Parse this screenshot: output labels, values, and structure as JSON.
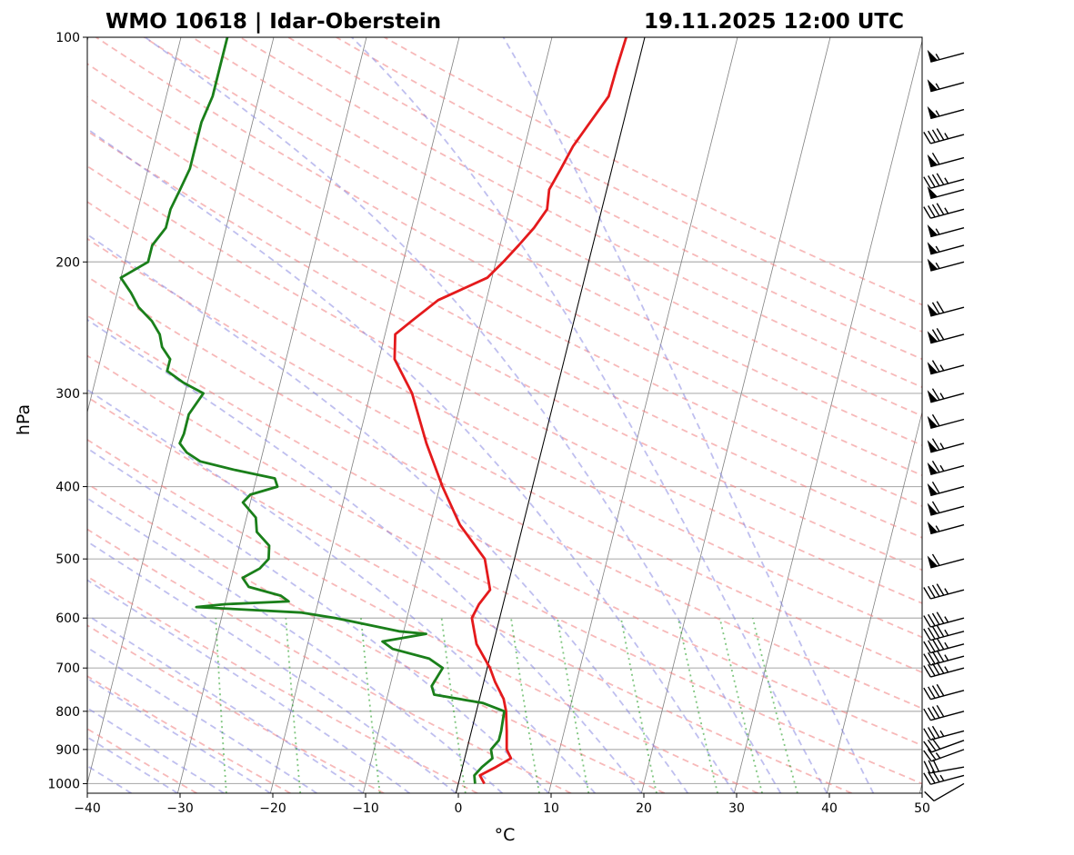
{
  "chart_data": {
    "type": "skew-t",
    "title_left": "WMO 10618 | Idar-Oberstein",
    "title_right": "19.11.2025 12:00 UTC",
    "xlabel": "°C",
    "ylabel": "hPa",
    "xlim": [
      -40,
      50
    ],
    "ylim": [
      1030,
      100
    ],
    "x_ticks": [
      -40,
      -30,
      -20,
      -10,
      0,
      10,
      20,
      30,
      40,
      50
    ],
    "x_tick_labels": [
      "−40",
      "−30",
      "−20",
      "−10",
      "0",
      "10",
      "20",
      "30",
      "40",
      "50"
    ],
    "y_ticks": [
      1000,
      900,
      800,
      700,
      600,
      500,
      400,
      300,
      200,
      100
    ],
    "y_tick_labels": [
      "1000",
      "900",
      "800",
      "700",
      "600",
      "500",
      "400",
      "300",
      "200",
      "100"
    ],
    "reference_lines": {
      "isotherms_c": [
        -160,
        -150,
        -140,
        -130,
        -120,
        -110,
        -100,
        -90,
        -80,
        -70,
        -60,
        -50,
        -40,
        -30,
        -20,
        -10,
        0,
        10,
        20,
        30,
        40,
        50
      ],
      "dry_adiabats_c": [
        -30,
        -20,
        -10,
        0,
        10,
        20,
        30,
        40,
        50,
        60,
        70,
        80,
        90,
        100,
        110,
        120,
        130,
        140,
        150,
        160,
        170,
        180,
        190,
        200
      ],
      "moist_adiabats_c": [
        -35,
        -30,
        -25,
        -20,
        -15,
        -10,
        -5,
        0,
        5,
        10,
        15,
        20,
        25,
        30,
        35,
        40,
        45
      ],
      "mixing_ratio_lines_gkg": [
        0.5,
        1,
        2,
        4,
        7,
        10,
        16,
        24,
        32,
        40
      ],
      "highlighted_isotherm_c": 0
    },
    "series": [
      {
        "name": "Temperature",
        "color": "#e41a1c",
        "points": [
          [
            1000,
            2.8
          ],
          [
            975,
            2.1
          ],
          [
            950,
            3.6
          ],
          [
            925,
            5.0
          ],
          [
            900,
            4.3
          ],
          [
            850,
            3.8
          ],
          [
            800,
            3.2
          ],
          [
            770,
            2.6
          ],
          [
            730,
            1.2
          ],
          [
            700,
            0.3
          ],
          [
            650,
            -1.8
          ],
          [
            600,
            -3.0
          ],
          [
            575,
            -2.6
          ],
          [
            550,
            -1.8
          ],
          [
            500,
            -3.2
          ],
          [
            450,
            -6.8
          ],
          [
            400,
            -9.7
          ],
          [
            350,
            -12.6
          ],
          [
            300,
            -15.5
          ],
          [
            270,
            -18.3
          ],
          [
            250,
            -18.9
          ],
          [
            240,
            -17.5
          ],
          [
            225,
            -15.2
          ],
          [
            210,
            -10.5
          ],
          [
            200,
            -9.2
          ],
          [
            190,
            -8.0
          ],
          [
            180,
            -6.8
          ],
          [
            170,
            -5.9
          ],
          [
            160,
            -6.2
          ],
          [
            150,
            -5.5
          ],
          [
            140,
            -4.8
          ],
          [
            130,
            -3.6
          ],
          [
            120,
            -2.3
          ],
          [
            110,
            -2.2
          ],
          [
            100,
            -2.0
          ]
        ]
      },
      {
        "name": "Dewpoint",
        "color": "#1a7f1a",
        "points": [
          [
            1000,
            1.8
          ],
          [
            975,
            1.5
          ],
          [
            950,
            2.1
          ],
          [
            925,
            3.0
          ],
          [
            900,
            2.6
          ],
          [
            875,
            3.2
          ],
          [
            850,
            3.2
          ],
          [
            800,
            3.0
          ],
          [
            780,
            0.5
          ],
          [
            760,
            -5.0
          ],
          [
            740,
            -5.5
          ],
          [
            700,
            -4.8
          ],
          [
            680,
            -6.5
          ],
          [
            660,
            -10.7
          ],
          [
            645,
            -12.0
          ],
          [
            630,
            -7.5
          ],
          [
            625,
            -10.5
          ],
          [
            600,
            -17.7
          ],
          [
            590,
            -21.5
          ],
          [
            580,
            -33.0
          ],
          [
            575,
            -30.0
          ],
          [
            570,
            -23.2
          ],
          [
            560,
            -24.2
          ],
          [
            545,
            -27.9
          ],
          [
            530,
            -28.8
          ],
          [
            515,
            -27.2
          ],
          [
            500,
            -26.5
          ],
          [
            480,
            -26.8
          ],
          [
            460,
            -28.5
          ],
          [
            440,
            -29.0
          ],
          [
            420,
            -30.8
          ],
          [
            410,
            -30.2
          ],
          [
            400,
            -27.5
          ],
          [
            390,
            -28.0
          ],
          [
            380,
            -32.5
          ],
          [
            370,
            -36.5
          ],
          [
            360,
            -38.2
          ],
          [
            350,
            -39.2
          ],
          [
            340,
            -39.0
          ],
          [
            320,
            -39.0
          ],
          [
            300,
            -38.0
          ],
          [
            290,
            -40.5
          ],
          [
            280,
            -42.5
          ],
          [
            270,
            -42.5
          ],
          [
            260,
            -43.7
          ],
          [
            250,
            -44.3
          ],
          [
            240,
            -45.5
          ],
          [
            230,
            -47.3
          ],
          [
            220,
            -48.5
          ],
          [
            210,
            -50.0
          ],
          [
            200,
            -47.5
          ],
          [
            190,
            -47.5
          ],
          [
            180,
            -46.5
          ],
          [
            170,
            -46.5
          ],
          [
            160,
            -46.0
          ],
          [
            150,
            -45.5
          ],
          [
            140,
            -45.5
          ],
          [
            130,
            -45.5
          ],
          [
            120,
            -45.0
          ],
          [
            110,
            -45.0
          ],
          [
            100,
            -45.0
          ]
        ]
      }
    ],
    "wind_barbs": [
      {
        "pressure": 1000,
        "direction_deg": 240,
        "speed_kt": 10
      },
      {
        "pressure": 975,
        "direction_deg": 255,
        "speed_kt": 35
      },
      {
        "pressure": 950,
        "direction_deg": 260,
        "speed_kt": 30
      },
      {
        "pressure": 900,
        "direction_deg": 250,
        "speed_kt": 25
      },
      {
        "pressure": 875,
        "direction_deg": 250,
        "speed_kt": 30
      },
      {
        "pressure": 850,
        "direction_deg": 255,
        "speed_kt": 35
      },
      {
        "pressure": 800,
        "direction_deg": 255,
        "speed_kt": 40
      },
      {
        "pressure": 750,
        "direction_deg": 255,
        "speed_kt": 40
      },
      {
        "pressure": 700,
        "direction_deg": 255,
        "speed_kt": 45
      },
      {
        "pressure": 675,
        "direction_deg": 255,
        "speed_kt": 45
      },
      {
        "pressure": 650,
        "direction_deg": 255,
        "speed_kt": 45
      },
      {
        "pressure": 625,
        "direction_deg": 255,
        "speed_kt": 45
      },
      {
        "pressure": 600,
        "direction_deg": 255,
        "speed_kt": 45
      },
      {
        "pressure": 550,
        "direction_deg": 255,
        "speed_kt": 45
      },
      {
        "pressure": 500,
        "direction_deg": 255,
        "speed_kt": 60
      },
      {
        "pressure": 450,
        "direction_deg": 255,
        "speed_kt": 55
      },
      {
        "pressure": 425,
        "direction_deg": 255,
        "speed_kt": 60
      },
      {
        "pressure": 400,
        "direction_deg": 255,
        "speed_kt": 60
      },
      {
        "pressure": 375,
        "direction_deg": 255,
        "speed_kt": 65
      },
      {
        "pressure": 350,
        "direction_deg": 255,
        "speed_kt": 65
      },
      {
        "pressure": 325,
        "direction_deg": 255,
        "speed_kt": 60
      },
      {
        "pressure": 300,
        "direction_deg": 255,
        "speed_kt": 65
      },
      {
        "pressure": 275,
        "direction_deg": 255,
        "speed_kt": 65
      },
      {
        "pressure": 250,
        "direction_deg": 255,
        "speed_kt": 70
      },
      {
        "pressure": 230,
        "direction_deg": 255,
        "speed_kt": 70
      },
      {
        "pressure": 200,
        "direction_deg": 255,
        "speed_kt": 55
      },
      {
        "pressure": 190,
        "direction_deg": 255,
        "speed_kt": 55
      },
      {
        "pressure": 180,
        "direction_deg": 255,
        "speed_kt": 55
      },
      {
        "pressure": 170,
        "direction_deg": 255,
        "speed_kt": 45
      },
      {
        "pressure": 160,
        "direction_deg": 255,
        "speed_kt": 50
      },
      {
        "pressure": 155,
        "direction_deg": 255,
        "speed_kt": 45
      },
      {
        "pressure": 145,
        "direction_deg": 255,
        "speed_kt": 60
      },
      {
        "pressure": 135,
        "direction_deg": 255,
        "speed_kt": 45
      },
      {
        "pressure": 125,
        "direction_deg": 255,
        "speed_kt": 55
      },
      {
        "pressure": 115,
        "direction_deg": 255,
        "speed_kt": 55
      },
      {
        "pressure": 105,
        "direction_deg": 255,
        "speed_kt": 55
      }
    ]
  }
}
